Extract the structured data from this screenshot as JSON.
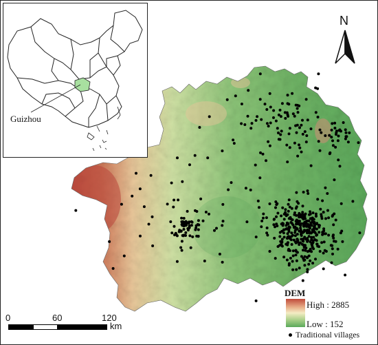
{
  "inset": {
    "province_label": "Guizhou",
    "highlight_color": "#a8e0a0"
  },
  "north_arrow": {
    "letter": "N"
  },
  "legend": {
    "title": "DEM",
    "high_label": "High : 2885",
    "low_label": "Low : 152",
    "points_label": "Traditional villages",
    "high_color": "#c04a3a",
    "low_color": "#5aa85a",
    "point_color": "#000000"
  },
  "scale_bar": {
    "ticks": [
      "0",
      "60",
      "120"
    ],
    "unit": "km"
  }
}
